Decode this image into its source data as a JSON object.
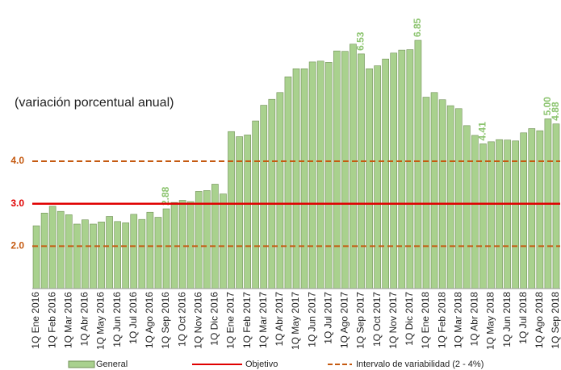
{
  "chart_data": {
    "type": "bar",
    "annotation": "(variación porcentual anual)",
    "categories": [
      "1Q Ene 2016",
      null,
      "1Q Feb 2016",
      null,
      "1Q Mar 2016",
      null,
      "1Q Abr 2016",
      null,
      "1Q May 2016",
      null,
      "1Q Jun 2016",
      null,
      "1Q Jul 2016",
      null,
      "1Q Ago 2016",
      null,
      "1Q Sep 2016",
      null,
      "1Q Oct 2016",
      null,
      "1Q Nov 2016",
      null,
      "1Q Dic 2016",
      null,
      "1Q Ene 2017",
      null,
      "1Q Feb 2017",
      null,
      "1Q Mar 2017",
      null,
      "1Q Abr 2017",
      null,
      "1Q May 2017",
      null,
      "1Q Jun 2017",
      null,
      "1Q Jul 2017",
      null,
      "1Q Ago 2017",
      null,
      "1Q Sep 2017",
      null,
      "1Q Oct 2017",
      null,
      "1Q Nov 2017",
      null,
      "1Q Dic 2017",
      null,
      "1Q Ene 2018",
      null,
      "1Q Feb 2018",
      null,
      "1Q Mar 2018",
      null,
      "1Q Abr 2018",
      null,
      "1Q May 2018",
      null,
      "1Q Jun 2018",
      null,
      "1Q Jul 2018",
      null,
      "1Q Ago 2018",
      null,
      "1Q Sep 2018"
    ],
    "series": [
      {
        "name": "General",
        "color": "#a9d18e",
        "values": [
          2.48,
          2.78,
          2.94,
          2.82,
          2.74,
          2.52,
          2.62,
          2.52,
          2.57,
          2.7,
          2.58,
          2.55,
          2.75,
          2.63,
          2.8,
          2.68,
          2.88,
          3.03,
          3.08,
          3.05,
          3.29,
          3.31,
          3.46,
          3.23,
          4.7,
          4.58,
          4.62,
          4.95,
          5.32,
          5.46,
          5.62,
          5.99,
          6.18,
          6.18,
          6.34,
          6.36,
          6.33,
          6.6,
          6.59,
          6.76,
          6.53,
          6.18,
          6.25,
          6.41,
          6.55,
          6.62,
          6.63,
          6.85,
          5.51,
          5.62,
          5.45,
          5.31,
          5.24,
          4.84,
          4.61,
          4.41,
          4.46,
          4.51,
          4.5,
          4.48,
          4.67,
          4.77,
          4.72,
          5.0,
          4.88
        ],
        "value_labels": [
          null,
          null,
          null,
          null,
          null,
          null,
          null,
          null,
          null,
          null,
          null,
          null,
          null,
          null,
          null,
          null,
          "2.88",
          null,
          null,
          null,
          null,
          null,
          null,
          null,
          null,
          null,
          null,
          null,
          null,
          null,
          null,
          null,
          null,
          null,
          null,
          null,
          null,
          null,
          null,
          null,
          "6.53",
          null,
          null,
          null,
          null,
          null,
          null,
          "6.85",
          null,
          null,
          null,
          null,
          null,
          null,
          null,
          "4.41",
          null,
          null,
          null,
          null,
          null,
          null,
          null,
          "5.00",
          "4.88"
        ]
      }
    ],
    "reference_lines": [
      {
        "name": "Objetivo",
        "color": "#e00000",
        "values": [
          3
        ],
        "dashed": false
      },
      {
        "name": "Intervalo de variabilidad (2 - 4%)",
        "color": "#c55a11",
        "values": [
          2,
          4
        ],
        "dashed": true
      }
    ],
    "ylim": [
      1,
      7.8
    ],
    "yticks": [
      {
        "value": 2,
        "label": "2.0"
      },
      {
        "value": 3,
        "label": "3.0"
      },
      {
        "value": 4,
        "label": "4.0"
      }
    ]
  }
}
